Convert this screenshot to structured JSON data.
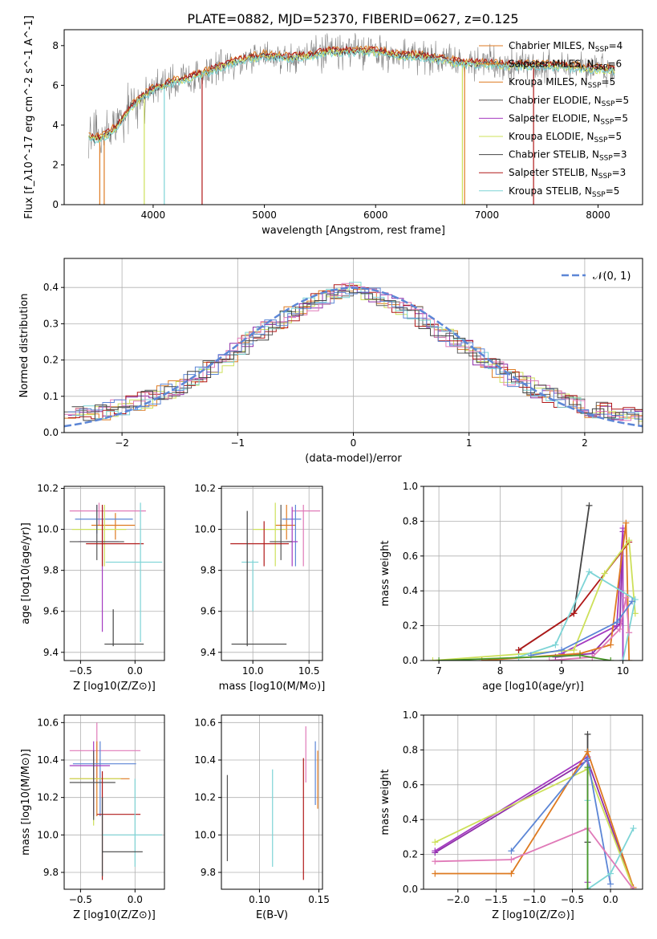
{
  "figure_title": "PLATE=0882, MJD=52370, FIBERID=0627, z=0.125",
  "colors": {
    "ChabrierMILES": "#4a4a4a",
    "SalpeterMILES": "#8e2fa8",
    "KroupaMILES": "#de7a20",
    "ChabrierELODIE": "#5f5f5f",
    "SalpeterELODIE": "#a43ac0",
    "KroupaELODIE": "#cde05a",
    "ChabrierSTELIB": "#444444",
    "SalpeterSTELIB": "#b01818",
    "KroupaSTELIB": "#7dd4d6",
    "pink": "#e07ab8",
    "blue": "#5c86d6",
    "green": "#4a9a2a",
    "olive": "#a0b030",
    "data": "#808080"
  },
  "chart_data": [
    {
      "id": "spectrum",
      "type": "line",
      "xlabel": "wavelength [Angstrom, rest frame]",
      "ylabel": "Flux [f_λ10^-17 erg cm^-2 s^-1 A^-1]",
      "xlim": [
        3200,
        8400
      ],
      "ylim": [
        0,
        8.8
      ],
      "xticks": [
        4000,
        5000,
        6000,
        7000,
        8000
      ],
      "yticks": [
        0,
        2,
        4,
        6,
        8
      ],
      "legend": [
        {
          "label": "Chabrier MILES, N_SSP=4",
          "color": "#de7a20"
        },
        {
          "label": "Salpeter MILES, N_SSP=6",
          "color": "#de7a20"
        },
        {
          "label": "Kroupa MILES, N_SSP=5",
          "color": "#de7a20"
        },
        {
          "label": "Chabrier ELODIE, N_SSP=5",
          "color": "#555555"
        },
        {
          "label": "Salpeter ELODIE, N_SSP=5",
          "color": "#a43ac0"
        },
        {
          "label": "Kroupa ELODIE, N_SSP=5",
          "color": "#cde05a"
        },
        {
          "label": "Chabrier STELIB, N_SSP=3",
          "color": "#444444"
        },
        {
          "label": "Salpeter STELIB, N_SSP=3",
          "color": "#b01818"
        },
        {
          "label": "Kroupa STELIB, N_SSP=5",
          "color": "#7dd4d6"
        }
      ],
      "continuum": [
        [
          3420,
          3.4
        ],
        [
          3500,
          3.3
        ],
        [
          3600,
          3.6
        ],
        [
          3700,
          4.1
        ],
        [
          3800,
          4.9
        ],
        [
          3900,
          5.4
        ],
        [
          4000,
          5.8
        ],
        [
          4100,
          6.0
        ],
        [
          4200,
          6.2
        ],
        [
          4300,
          6.3
        ],
        [
          4400,
          6.5
        ],
        [
          4500,
          6.7
        ],
        [
          4600,
          6.9
        ],
        [
          4700,
          7.1
        ],
        [
          4800,
          7.3
        ],
        [
          4900,
          7.4
        ],
        [
          5000,
          7.5
        ],
        [
          5200,
          7.4
        ],
        [
          5400,
          7.5
        ],
        [
          5600,
          7.7
        ],
        [
          5800,
          7.7
        ],
        [
          6000,
          7.7
        ],
        [
          6200,
          7.5
        ],
        [
          6400,
          7.5
        ],
        [
          6600,
          7.3
        ],
        [
          6800,
          7.1
        ],
        [
          7000,
          7.1
        ],
        [
          7200,
          7.0
        ],
        [
          7400,
          7.0
        ],
        [
          7600,
          7.0
        ],
        [
          7800,
          6.9
        ],
        [
          8000,
          6.8
        ],
        [
          8150,
          6.8
        ]
      ]
    },
    {
      "id": "residuals",
      "type": "histogram",
      "xlabel": "(data-model)/error",
      "ylabel": "Normed distribution",
      "xlim": [
        -2.5,
        2.5
      ],
      "ylim": [
        0,
        0.48
      ],
      "xticks": [
        -2,
        -1,
        0,
        1,
        2
      ],
      "yticks": [
        0.0,
        0.1,
        0.2,
        0.3,
        0.4
      ],
      "legend": [
        {
          "label": "N(0,1)",
          "style": "dashed",
          "color": "#5c86d6"
        }
      ],
      "gaussian": {
        "mean": 0,
        "sigma": 1
      }
    },
    {
      "id": "age_vs_Z",
      "type": "errorbar",
      "xlabel": "Z [log10(Z/Z⊙)]",
      "ylabel": "age [log10(age/yr)]",
      "xlim": [
        -0.65,
        0.27
      ],
      "ylim": [
        9.36,
        10.21
      ],
      "xticks": [
        -0.5,
        0.0
      ],
      "yticks": [
        9.4,
        9.6,
        9.8,
        10.0,
        10.2
      ],
      "points": [
        {
          "x": -0.33,
          "xlo": 0.27,
          "xhi": 0.43,
          "y": 10.09,
          "ylo": 10.02,
          "yhi": 10.13,
          "color": "#e07ab8"
        },
        {
          "x": -0.18,
          "xlo": 0.22,
          "xhi": 0.18,
          "y": 10.02,
          "ylo": 9.95,
          "yhi": 10.08,
          "color": "#de7a20"
        },
        {
          "x": -0.35,
          "xlo": 0.2,
          "xhi": 0.33,
          "y": 10.05,
          "ylo": 9.98,
          "yhi": 10.12,
          "color": "#5c86d6"
        },
        {
          "x": -0.28,
          "xlo": 0.3,
          "xhi": 0.2,
          "y": 10.0,
          "ylo": 9.82,
          "yhi": 10.12,
          "color": "#cde05a"
        },
        {
          "x": -0.3,
          "xlo": 0.22,
          "xhi": 0.15,
          "y": 9.94,
          "ylo": 9.5,
          "yhi": 10.11,
          "color": "#a43ac0"
        },
        {
          "x": -0.35,
          "xlo": 0.25,
          "xhi": 0.25,
          "y": 9.94,
          "ylo": 9.85,
          "yhi": 10.12,
          "color": "#555555"
        },
        {
          "x": -0.3,
          "xlo": 0.15,
          "xhi": 0.38,
          "y": 9.93,
          "ylo": 9.82,
          "yhi": 10.12,
          "color": "#b01818"
        },
        {
          "x": 0.05,
          "xlo": 0.32,
          "xhi": 0.2,
          "y": 9.84,
          "ylo": 9.45,
          "yhi": 10.13,
          "color": "#7dd4d6"
        },
        {
          "x": -0.2,
          "xlo": 0.08,
          "xhi": 0.28,
          "y": 9.44,
          "ylo": 9.43,
          "yhi": 9.61,
          "color": "#444444"
        }
      ]
    },
    {
      "id": "age_vs_mass",
      "type": "errorbar",
      "xlabel": "mass [log10(M/M⊙)]",
      "ylabel": "",
      "xlim": [
        9.72,
        10.62
      ],
      "ylim": [
        9.36,
        10.21
      ],
      "xticks": [
        10.0,
        10.5
      ],
      "yticks": [
        9.4,
        9.6,
        9.8,
        10.0,
        10.2
      ],
      "points": [
        {
          "x": 10.45,
          "xlo": 0.1,
          "xhi": 0.15,
          "y": 10.09,
          "ylo": 9.82,
          "yhi": 10.12,
          "color": "#e07ab8"
        },
        {
          "x": 10.3,
          "xlo": 0.1,
          "xhi": 0.08,
          "y": 10.02,
          "ylo": 9.95,
          "yhi": 10.12,
          "color": "#de7a20"
        },
        {
          "x": 10.38,
          "xlo": 0.12,
          "xhi": 0.05,
          "y": 10.05,
          "ylo": 9.82,
          "yhi": 10.12,
          "color": "#5c86d6"
        },
        {
          "x": 10.2,
          "xlo": 0.2,
          "xhi": 0.1,
          "y": 10.0,
          "ylo": 9.82,
          "yhi": 10.13,
          "color": "#cde05a"
        },
        {
          "x": 10.35,
          "xlo": 0.05,
          "xhi": 0.05,
          "y": 9.94,
          "ylo": 9.82,
          "yhi": 10.11,
          "color": "#a43ac0"
        },
        {
          "x": 10.25,
          "xlo": 0.1,
          "xhi": 0.1,
          "y": 9.94,
          "ylo": 9.85,
          "yhi": 10.12,
          "color": "#555555"
        },
        {
          "x": 10.1,
          "xlo": 0.3,
          "xhi": 0.22,
          "y": 9.93,
          "ylo": 9.82,
          "yhi": 10.04,
          "color": "#b01818"
        },
        {
          "x": 10.0,
          "xlo": 0.1,
          "xhi": 0.05,
          "y": 9.84,
          "ylo": 9.6,
          "yhi": 9.85,
          "color": "#7dd4d6"
        },
        {
          "x": 9.95,
          "xlo": 0.14,
          "xhi": 0.35,
          "y": 9.44,
          "ylo": 9.43,
          "yhi": 10.09,
          "color": "#444444"
        }
      ]
    },
    {
      "id": "weight_vs_age",
      "type": "line",
      "xlabel": "age [log10(age/yr)]",
      "ylabel": "mass weight",
      "xlim": [
        6.75,
        10.32
      ],
      "ylim": [
        0,
        1.0
      ],
      "xticks": [
        7,
        8,
        9,
        10
      ],
      "yticks": [
        0.0,
        0.2,
        0.4,
        0.6,
        0.8,
        1.0
      ],
      "series": [
        {
          "color": "#444444",
          "x": [
            8.3,
            9.2,
            9.45
          ],
          "y": [
            0.06,
            0.27,
            0.89
          ]
        },
        {
          "color": "#b01818",
          "x": [
            8.3,
            9.2,
            10.1
          ],
          "y": [
            0.06,
            0.27,
            0.68
          ]
        },
        {
          "color": "#8e2fa8",
          "x": [
            8.9,
            9.5,
            9.95,
            10.0
          ],
          "y": [
            0.02,
            0.04,
            0.21,
            0.74
          ]
        },
        {
          "color": "#a43ac0",
          "x": [
            9.0,
            9.9,
            10.0,
            10.0
          ],
          "y": [
            0.04,
            0.2,
            0.76,
            0.0
          ]
        },
        {
          "color": "#de7a20",
          "x": [
            7.7,
            9.3,
            9.8,
            10.05,
            10.1
          ],
          "y": [
            0.0,
            0.04,
            0.09,
            0.79,
            0.0
          ]
        },
        {
          "color": "#cde05a",
          "x": [
            6.9,
            9.2,
            9.7,
            10.1,
            10.2
          ],
          "y": [
            0.0,
            0.06,
            0.5,
            0.69,
            0.27
          ]
        },
        {
          "color": "#7dd4d6",
          "x": [
            8.3,
            8.9,
            9.45,
            10.2,
            10.0
          ],
          "y": [
            0.02,
            0.09,
            0.51,
            0.35,
            0.0
          ]
        },
        {
          "color": "#e07ab8",
          "x": [
            8.8,
            9.5,
            9.95,
            10.05,
            10.1
          ],
          "y": [
            0.0,
            0.02,
            0.18,
            0.36,
            0.16
          ]
        },
        {
          "color": "#5c86d6",
          "x": [
            8.5,
            9.0,
            9.9,
            10.15
          ],
          "y": [
            0.03,
            0.06,
            0.22,
            0.34
          ]
        },
        {
          "color": "#4a9a2a",
          "x": [
            7.0,
            9.3,
            9.8
          ],
          "y": [
            0.0,
            0.03,
            0.0
          ]
        }
      ]
    },
    {
      "id": "mass_vs_Z",
      "type": "errorbar",
      "xlabel": "Z [log10(Z/Z⊙)]",
      "ylabel": "mass [log10(M/M⊙)]",
      "xlim": [
        -0.65,
        0.27
      ],
      "ylim": [
        9.71,
        10.64
      ],
      "xticks": [
        -0.5,
        0.0
      ],
      "yticks": [
        9.8,
        10.0,
        10.2,
        10.4,
        10.6
      ],
      "points": [
        {
          "x": -0.35,
          "xlo": 0.25,
          "xhi": 0.4,
          "y": 10.45,
          "ylo": 10.3,
          "yhi": 10.6,
          "color": "#e07ab8"
        },
        {
          "x": -0.35,
          "xlo": 0.25,
          "xhi": 0.3,
          "y": 10.3,
          "ylo": 10.1,
          "yhi": 10.5,
          "color": "#de7a20"
        },
        {
          "x": -0.32,
          "xlo": 0.25,
          "xhi": 0.33,
          "y": 10.38,
          "ylo": 10.1,
          "yhi": 10.5,
          "color": "#5c86d6"
        },
        {
          "x": -0.38,
          "xlo": 0.22,
          "xhi": 0.25,
          "y": 10.3,
          "ylo": 10.05,
          "yhi": 10.42,
          "color": "#cde05a"
        },
        {
          "x": -0.38,
          "xlo": 0.22,
          "xhi": 0.15,
          "y": 10.37,
          "ylo": 10.1,
          "yhi": 10.5,
          "color": "#a43ac0"
        },
        {
          "x": -0.38,
          "xlo": 0.22,
          "xhi": 0.2,
          "y": 10.28,
          "ylo": 10.08,
          "yhi": 10.45,
          "color": "#555555"
        },
        {
          "x": -0.3,
          "xlo": 0.05,
          "xhi": 0.35,
          "y": 10.11,
          "ylo": 9.76,
          "yhi": 10.34,
          "color": "#b01818"
        },
        {
          "x": 0.0,
          "xlo": 0.3,
          "xhi": 0.25,
          "y": 10.0,
          "ylo": 9.83,
          "yhi": 10.3,
          "color": "#7dd4d6"
        },
        {
          "x": -0.3,
          "xlo": 0.0,
          "xhi": 0.37,
          "y": 9.91,
          "ylo": 9.78,
          "yhi": 10.2,
          "color": "#444444"
        }
      ]
    },
    {
      "id": "mass_vs_ebv",
      "type": "errorbar",
      "xlabel": "E(B-V)",
      "ylabel": "",
      "xlim": [
        0.068,
        0.153
      ],
      "ylim": [
        9.71,
        10.64
      ],
      "xticks": [
        0.1,
        0.15
      ],
      "yticks": [
        9.8,
        10.0,
        10.2,
        10.4,
        10.6
      ],
      "points": [
        {
          "x": 0.073,
          "y": 10.09,
          "ylo": 9.86,
          "yhi": 10.32,
          "color": "#555555"
        },
        {
          "x": 0.111,
          "y": 10.09,
          "ylo": 9.83,
          "yhi": 10.35,
          "color": "#7dd4d6"
        },
        {
          "x": 0.137,
          "y": 10.09,
          "ylo": 9.76,
          "yhi": 10.41,
          "color": "#b01818"
        },
        {
          "x": 0.139,
          "y": 10.45,
          "ylo": 10.28,
          "yhi": 10.58,
          "color": "#e07ab8"
        },
        {
          "x": 0.147,
          "y": 10.33,
          "ylo": 10.16,
          "yhi": 10.5,
          "color": "#5c86d6"
        },
        {
          "x": 0.149,
          "y": 10.3,
          "ylo": 10.14,
          "yhi": 10.45,
          "color": "#de7a20"
        }
      ]
    },
    {
      "id": "weight_vs_Z",
      "type": "line",
      "xlabel": "Z [log10(Z/Z⊙)]",
      "ylabel": "mass weight",
      "xlim": [
        -2.45,
        0.42
      ],
      "ylim": [
        0,
        1.0
      ],
      "xticks": [
        -2.0,
        -1.5,
        -1.0,
        -0.5,
        0.0
      ],
      "yticks": [
        0.0,
        0.2,
        0.4,
        0.6,
        0.8,
        1.0
      ],
      "series": [
        {
          "color": "#444444",
          "x": [
            -0.3,
            -0.3,
            -0.3
          ],
          "y": [
            0.89,
            0.27,
            0.0
          ]
        },
        {
          "color": "#8e2fa8",
          "x": [
            -2.3,
            -0.3,
            0.3
          ],
          "y": [
            0.21,
            0.74,
            0.0
          ]
        },
        {
          "color": "#a43ac0",
          "x": [
            -2.3,
            -0.3,
            -0.3
          ],
          "y": [
            0.22,
            0.76,
            0.04
          ]
        },
        {
          "color": "#de7a20",
          "x": [
            -2.3,
            -1.3,
            -0.3,
            0.3
          ],
          "y": [
            0.09,
            0.09,
            0.79,
            0.01
          ]
        },
        {
          "color": "#cde05a",
          "x": [
            -2.3,
            -0.3,
            0.3
          ],
          "y": [
            0.27,
            0.69,
            0.0
          ]
        },
        {
          "color": "#5c86d6",
          "x": [
            -1.3,
            -0.3,
            0.0
          ],
          "y": [
            0.22,
            0.75,
            0.03
          ]
        },
        {
          "color": "#7dd4d6",
          "x": [
            -0.3,
            -0.3,
            0.0,
            0.3
          ],
          "y": [
            0.51,
            0.0,
            0.09,
            0.35
          ]
        },
        {
          "color": "#e07ab8",
          "x": [
            -2.3,
            -1.3,
            -0.3,
            0.3
          ],
          "y": [
            0.16,
            0.17,
            0.35,
            0.0
          ]
        },
        {
          "color": "#4a9a2a",
          "x": [
            -0.3,
            -0.3
          ],
          "y": [
            0.7,
            0.0
          ]
        }
      ]
    }
  ]
}
